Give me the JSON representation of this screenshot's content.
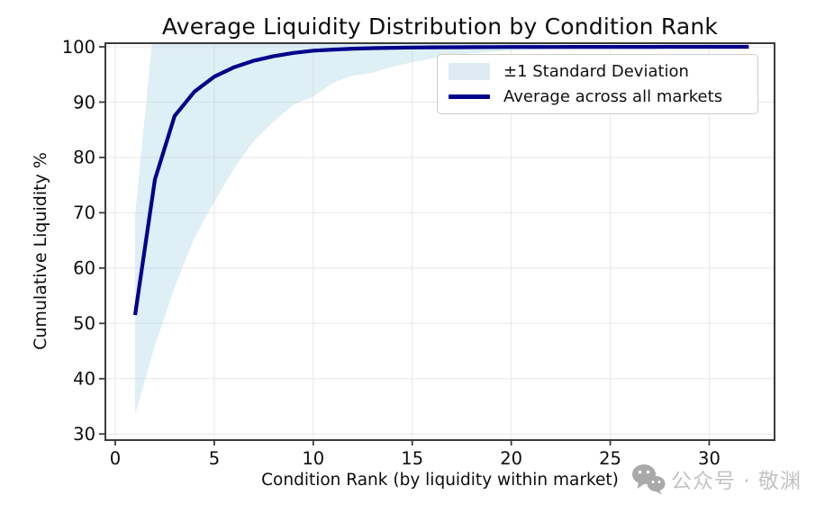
{
  "title": "Average Liquidity Distribution by Condition Rank",
  "colors": {
    "line": "#00008b",
    "band_fill": "#add8e6",
    "band_opacity": 0.4,
    "grid": "#e7e7e7",
    "spine": "#3b3b3b",
    "tick_text": "#0d0d0d",
    "legend_patch": "#deebf2",
    "watermark": "#c3c3c3",
    "watermark_icon": "#a9a9a9"
  },
  "legend": {
    "entries": [
      {
        "label": "±1 Standard Deviation",
        "swatch": "patch"
      },
      {
        "label": "Average across all markets",
        "swatch": "line"
      }
    ]
  },
  "watermark": {
    "icon": "wechat-icon",
    "text": "公众号 · 敬渊"
  },
  "chart_data": {
    "type": "line",
    "title": "Average Liquidity Distribution by Condition Rank",
    "xlabel": "Condition Rank (by liquidity within market)",
    "ylabel": "Cumulative Liquidity %",
    "xlim": [
      -0.5,
      33.3
    ],
    "ylim": [
      28.9,
      100.65
    ],
    "xticks": [
      0,
      5,
      10,
      15,
      20,
      25,
      30
    ],
    "yticks": [
      30,
      40,
      50,
      60,
      70,
      80,
      90,
      100
    ],
    "grid": true,
    "legend_position": "upper right",
    "x": [
      1,
      2,
      3,
      4,
      5,
      6,
      7,
      8,
      9,
      10,
      11,
      12,
      13,
      14,
      15,
      16,
      17,
      18,
      19,
      20,
      21,
      22,
      23,
      24,
      25,
      26,
      27,
      28,
      29,
      30,
      31,
      32
    ],
    "series": [
      {
        "name": "Average across all markets",
        "type": "line",
        "color": "#00008b",
        "values": [
          51.5,
          76.0,
          87.5,
          91.9,
          94.6,
          96.3,
          97.5,
          98.3,
          98.9,
          99.3,
          99.5,
          99.65,
          99.75,
          99.82,
          99.87,
          99.9,
          99.92,
          99.94,
          99.95,
          99.96,
          99.965,
          99.97,
          99.975,
          99.98,
          99.985,
          99.99,
          99.99,
          99.995,
          99.995,
          100.0,
          100.0,
          100.0
        ]
      },
      {
        "name": "±1 Standard Deviation",
        "type": "band",
        "color": "#add8e6",
        "std_values": [
          18.0,
          30.0,
          31.0,
          26.4,
          22.6,
          18.3,
          14.5,
          11.8,
          9.4,
          8.3,
          6.0,
          4.85,
          4.45,
          3.42,
          2.67,
          2.0,
          1.52,
          1.14,
          0.85,
          0.66,
          0.52,
          0.42,
          0.35,
          0.28,
          0.24,
          0.19,
          0.16,
          0.13,
          0.1,
          0.08,
          0.06,
          0.05
        ]
      }
    ]
  }
}
